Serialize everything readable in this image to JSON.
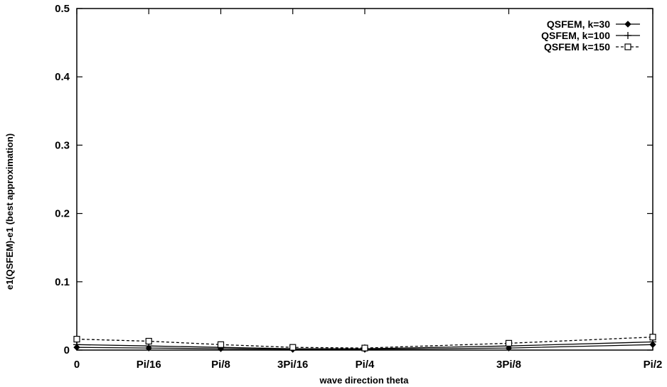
{
  "chart_data": {
    "type": "line",
    "title": "",
    "xlabel": "wave direction theta",
    "ylabel": "e1(QSFEM)-e1 (best approximation)",
    "x_tick_labels": [
      "0",
      "Pi/16",
      "Pi/8",
      "3Pi/16",
      "Pi/4",
      "3Pi/8",
      "Pi/2"
    ],
    "x_tick_values": [
      0,
      0.1963,
      0.3927,
      0.589,
      0.7854,
      1.1781,
      1.5708
    ],
    "xlim": [
      0,
      1.5708
    ],
    "y_tick_labels": [
      "0",
      "0.1",
      "0.2",
      "0.3",
      "0.4",
      "0.5"
    ],
    "y_tick_values": [
      0,
      0.1,
      0.2,
      0.3,
      0.4,
      0.5
    ],
    "ylim": [
      0,
      0.5
    ],
    "grid": false,
    "legend_position": "top-right",
    "series": [
      {
        "name": "QSFEM, k=30",
        "marker": "diamond",
        "line_style": "solid",
        "x": [
          0,
          0.1963,
          0.3927,
          0.589,
          0.7854,
          1.1781,
          1.5708
        ],
        "y": [
          0.004,
          0.003,
          0.002,
          0.001,
          0.001,
          0.003,
          0.008
        ]
      },
      {
        "name": "QSFEM, k=100",
        "marker": "plus",
        "line_style": "solid",
        "x": [
          0,
          0.1963,
          0.3927,
          0.589,
          0.7854,
          1.1781,
          1.5708
        ],
        "y": [
          0.008,
          0.006,
          0.004,
          0.002,
          0.002,
          0.006,
          0.012
        ]
      },
      {
        "name": "QSFEM k=150",
        "marker": "square",
        "line_style": "dashed",
        "x": [
          0,
          0.1963,
          0.3927,
          0.589,
          0.7854,
          1.1781,
          1.5708
        ],
        "y": [
          0.016,
          0.013,
          0.008,
          0.004,
          0.003,
          0.01,
          0.019
        ]
      }
    ]
  }
}
